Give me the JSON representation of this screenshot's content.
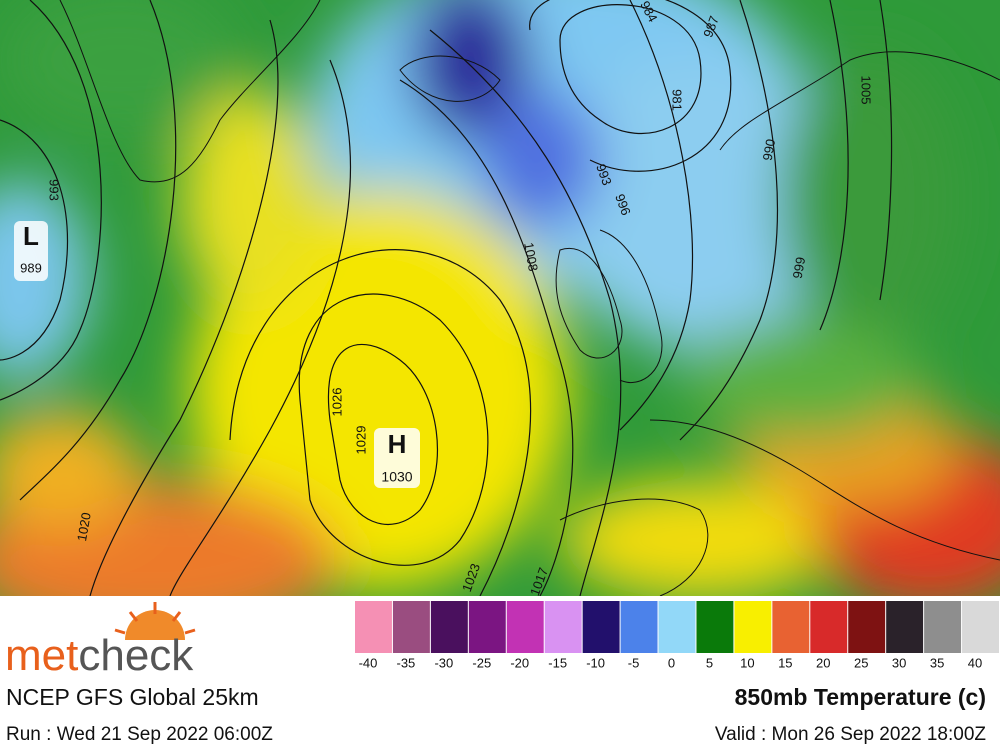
{
  "map": {
    "pressure_labels": [
      "993",
      "984",
      "987",
      "981",
      "990",
      "993",
      "996",
      "1008",
      "1005",
      "999",
      "1026",
      "1029",
      "1020",
      "1023",
      "1017"
    ],
    "low": {
      "letter": "L",
      "value": "989"
    },
    "high": {
      "letter": "H",
      "value": "1030"
    }
  },
  "legend": {
    "colors": [
      "#f590b4",
      "#9a4d80",
      "#4a105e",
      "#7b1582",
      "#c232b4",
      "#d992f2",
      "#22106c",
      "#4c82ea",
      "#92d8f8",
      "#0a7a0a",
      "#f8ef00",
      "#e86232",
      "#d82a2a",
      "#7e1212",
      "#2a222a",
      "#8e8e8e",
      "#d9d9d9"
    ],
    "labels": [
      -40,
      -35,
      -30,
      -25,
      -20,
      -15,
      -10,
      -5,
      0,
      5,
      10,
      15,
      20,
      25,
      30,
      35,
      40
    ]
  },
  "footer": {
    "brand_a": "met",
    "brand_b": "check",
    "model": "NCEP GFS Global 25km",
    "run": "Run : Wed 21 Sep 2022 06:00Z",
    "product": "850mb Temperature (c)",
    "valid": "Valid : Mon 26 Sep 2022 18:00Z"
  }
}
